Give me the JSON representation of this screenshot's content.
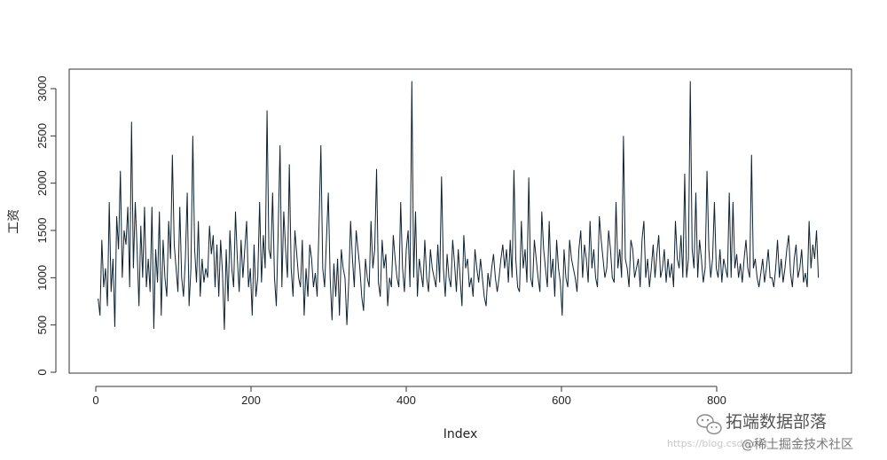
{
  "chart_data": {
    "type": "line",
    "title": "",
    "xlabel": "Index",
    "ylabel": "工资",
    "xlim": [
      0,
      935
    ],
    "ylim": [
      0,
      3100
    ],
    "x_ticks": [
      0,
      200,
      400,
      600,
      800
    ],
    "y_ticks": [
      0,
      500,
      1000,
      1500,
      2000,
      2500,
      3000
    ],
    "x_tick_labels": [
      "0",
      "200",
      "400",
      "600",
      "800"
    ],
    "y_tick_labels": [
      "0",
      "500",
      "1000",
      "1500",
      "2000",
      "2500",
      "3000"
    ],
    "line_color": "#0d2233",
    "grid": false,
    "legend": "none",
    "series": [
      {
        "values": [
          780,
          600,
          1400,
          900,
          1100,
          700,
          1800,
          850,
          1200,
          480,
          1650,
          1300,
          2130,
          1000,
          1500,
          1350,
          1750,
          900,
          2650,
          1100,
          1800,
          1300,
          700,
          1550,
          1000,
          1750,
          900,
          1200,
          850,
          1750,
          460,
          1300,
          950,
          1700,
          600,
          1400,
          1000,
          800,
          1600,
          1200,
          2300,
          1350,
          1100,
          850,
          1750,
          1000,
          800,
          1200,
          1900,
          700,
          1100,
          2500,
          1300,
          950,
          1600,
          800,
          1200,
          950,
          1100,
          1000,
          1550,
          1250,
          1450,
          900,
          1350,
          800,
          1400,
          1050,
          450,
          1300,
          750,
          1500,
          1100,
          900,
          1700,
          1200,
          850,
          1400,
          1000,
          1300,
          1600,
          900,
          1100,
          600,
          1350,
          800,
          1000,
          1800,
          950,
          1450,
          1100,
          2770,
          1300,
          1200,
          1900,
          1000,
          700,
          1500,
          2400,
          900,
          1700,
          1300,
          1000,
          2200,
          1100,
          800,
          1500,
          1250,
          1000,
          900,
          1400,
          600,
          1100,
          800,
          1350,
          1200,
          900,
          1050,
          800,
          1550,
          2400,
          1100,
          900,
          1400,
          1900,
          1000,
          550,
          1150,
          800,
          1200,
          600,
          1300,
          1100,
          1000,
          500,
          950,
          1600,
          1200,
          900,
          1500,
          1300,
          1100,
          800,
          650,
          1200,
          1000,
          900,
          1600,
          1100,
          1300,
          2150,
          950,
          800,
          1400,
          1100,
          1250,
          700,
          1000,
          900,
          1450,
          1200,
          1000,
          900,
          1800,
          1100,
          850,
          1300,
          1500,
          900,
          3080,
          1000,
          1700,
          800,
          1200,
          1050,
          900,
          1400,
          1000,
          850,
          1300,
          1100,
          1000,
          900,
          1350,
          950,
          2070,
          1100,
          800,
          1250,
          1000,
          900,
          1400,
          1150,
          850,
          1300,
          1000,
          700,
          1450,
          1100,
          1200,
          900,
          1000,
          800,
          1300,
          1100,
          950,
          1200,
          1000,
          800,
          700,
          1050,
          900,
          1100,
          1250,
          1000,
          850,
          1000,
          1200,
          1350,
          1100,
          1300,
          950,
          1400,
          1000,
          2140,
          1200,
          900,
          850,
          1600,
          1100,
          1300,
          950,
          2060,
          1000,
          900,
          1400,
          1200,
          1000,
          850,
          1700,
          1300,
          1100,
          900,
          1600,
          1000,
          1200,
          800,
          1400,
          1100,
          950,
          600,
          1300,
          1000,
          900,
          1400,
          1200,
          1100,
          1000,
          850,
          1300,
          1500,
          1000,
          1350,
          1200,
          950,
          1600,
          1100,
          1300,
          1000,
          900,
          1650,
          1400,
          1200,
          1000,
          1100,
          1500,
          1300,
          1000,
          950,
          1800,
          1100,
          1300,
          1000,
          2500,
          1200,
          1100,
          900,
          1400,
          1300,
          1000,
          1100,
          1200,
          900,
          1400,
          1600,
          1000,
          1200,
          900,
          1100,
          1350,
          1000,
          1250,
          1450,
          1000,
          1100,
          1300,
          950,
          1200,
          1000,
          1150,
          900,
          1600,
          1200,
          1100,
          1450,
          1000,
          2100,
          1000,
          1200,
          3080,
          1300,
          1100,
          1900,
          1000,
          1400,
          1200,
          950,
          1100,
          2130,
          1300,
          1000,
          1200,
          1800,
          1100,
          1000,
          1300,
          950,
          1200,
          1100,
          1000,
          1900,
          1000,
          1800,
          1100,
          1250,
          1000,
          1150,
          950,
          1200,
          1400,
          1100,
          1000,
          2300,
          1100,
          1200,
          1000,
          900,
          1050,
          1200,
          950,
          1100,
          1300,
          1000,
          1000,
          900,
          1100,
          1400,
          1000,
          1200,
          950,
          1100,
          1300,
          1450,
          1050,
          900,
          1200,
          1350,
          1000,
          1100,
          1300,
          950,
          1050,
          900,
          1600,
          1100,
          1350,
          1200,
          1500,
          1000
        ]
      }
    ]
  },
  "watermark": {
    "title": "拓端数据部落",
    "subtitle": "@稀土掘金技术社区",
    "url": "https://blog.csdn.net"
  }
}
